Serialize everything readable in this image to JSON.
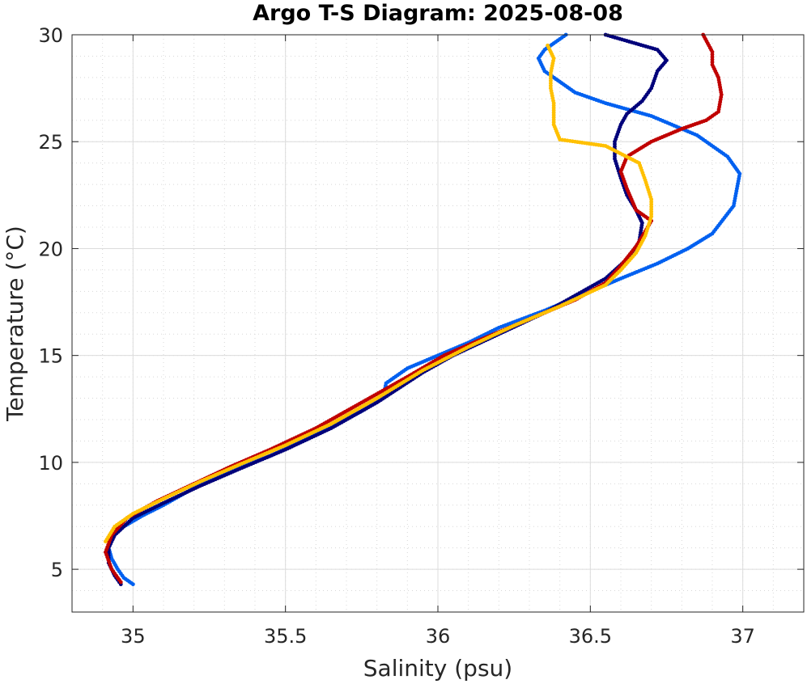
{
  "chart_data": {
    "type": "scatter",
    "title": "Argo T-S Diagram: 2025-08-08",
    "xlabel": "Salinity (psu)",
    "ylabel": "Temperature (°C)",
    "xlim": [
      34.8,
      37.2
    ],
    "ylim": [
      3,
      30
    ],
    "x_ticks": [
      35,
      35.5,
      36,
      36.5,
      37
    ],
    "x_tick_labels": [
      "35",
      "35.5",
      "36",
      "36.5",
      "37"
    ],
    "y_ticks": [
      5,
      10,
      15,
      20,
      25,
      30
    ],
    "y_tick_labels": [
      "5",
      "10",
      "15",
      "20",
      "25",
      "30"
    ],
    "grid": true,
    "minor_grid": true,
    "series": [
      {
        "color": "#0060f0",
        "points": [
          [
            35.0,
            4.3
          ],
          [
            34.97,
            4.6
          ],
          [
            34.95,
            5.0
          ],
          [
            34.93,
            5.5
          ],
          [
            34.92,
            6.0
          ],
          [
            34.93,
            6.5
          ],
          [
            34.97,
            7.0
          ],
          [
            35.03,
            7.5
          ],
          [
            35.1,
            8.0
          ],
          [
            35.2,
            8.8
          ],
          [
            35.3,
            9.5
          ],
          [
            35.45,
            10.3
          ],
          [
            35.6,
            11.3
          ],
          [
            35.75,
            12.4
          ],
          [
            35.82,
            13.0
          ],
          [
            35.83,
            13.7
          ],
          [
            35.9,
            14.4
          ],
          [
            36.0,
            15.0
          ],
          [
            36.1,
            15.6
          ],
          [
            36.2,
            16.3
          ],
          [
            36.35,
            17.1
          ],
          [
            36.5,
            18.0
          ],
          [
            36.6,
            18.6
          ],
          [
            36.72,
            19.3
          ],
          [
            36.82,
            20.0
          ],
          [
            36.9,
            20.7
          ],
          [
            36.97,
            22.0
          ],
          [
            36.99,
            23.5
          ],
          [
            36.95,
            24.3
          ],
          [
            36.85,
            25.3
          ],
          [
            36.7,
            26.2
          ],
          [
            36.55,
            26.8
          ],
          [
            36.45,
            27.3
          ],
          [
            36.4,
            27.8
          ],
          [
            36.35,
            28.3
          ],
          [
            36.33,
            28.9
          ],
          [
            36.35,
            29.3
          ],
          [
            36.38,
            29.6
          ],
          [
            36.42,
            30.0
          ]
        ]
      },
      {
        "color": "#00007a",
        "points": [
          [
            34.96,
            4.3
          ],
          [
            34.94,
            4.7
          ],
          [
            34.92,
            5.3
          ],
          [
            34.92,
            6.0
          ],
          [
            34.94,
            6.6
          ],
          [
            35.0,
            7.4
          ],
          [
            35.1,
            8.1
          ],
          [
            35.22,
            8.9
          ],
          [
            35.35,
            9.7
          ],
          [
            35.5,
            10.6
          ],
          [
            35.65,
            11.6
          ],
          [
            35.8,
            12.8
          ],
          [
            35.95,
            14.2
          ],
          [
            36.05,
            15.0
          ],
          [
            36.2,
            16.0
          ],
          [
            36.35,
            17.0
          ],
          [
            36.45,
            17.8
          ],
          [
            36.55,
            18.6
          ],
          [
            36.62,
            19.5
          ],
          [
            36.66,
            20.3
          ],
          [
            36.67,
            21.2
          ],
          [
            36.65,
            21.8
          ],
          [
            36.62,
            22.5
          ],
          [
            36.6,
            23.3
          ],
          [
            36.58,
            24.2
          ],
          [
            36.58,
            25.0
          ],
          [
            36.6,
            25.8
          ],
          [
            36.62,
            26.3
          ],
          [
            36.67,
            26.9
          ],
          [
            36.7,
            27.5
          ],
          [
            36.72,
            28.3
          ],
          [
            36.75,
            28.8
          ],
          [
            36.72,
            29.3
          ],
          [
            36.55,
            30.0
          ]
        ]
      },
      {
        "color": "#c00000",
        "points": [
          [
            34.96,
            4.4
          ],
          [
            34.93,
            5.0
          ],
          [
            34.91,
            5.8
          ],
          [
            34.93,
            6.6
          ],
          [
            34.98,
            7.4
          ],
          [
            35.08,
            8.2
          ],
          [
            35.2,
            9.0
          ],
          [
            35.32,
            9.8
          ],
          [
            35.45,
            10.6
          ],
          [
            35.6,
            11.6
          ],
          [
            35.75,
            12.8
          ],
          [
            35.9,
            14.0
          ],
          [
            36.02,
            15.0
          ],
          [
            36.15,
            15.8
          ],
          [
            36.3,
            16.7
          ],
          [
            36.45,
            17.6
          ],
          [
            36.55,
            18.4
          ],
          [
            36.6,
            19.2
          ],
          [
            36.65,
            20.1
          ],
          [
            36.68,
            20.8
          ],
          [
            36.7,
            21.3
          ],
          [
            36.65,
            21.8
          ],
          [
            36.62,
            22.8
          ],
          [
            36.6,
            23.6
          ],
          [
            36.62,
            24.3
          ],
          [
            36.7,
            25.0
          ],
          [
            36.8,
            25.6
          ],
          [
            36.88,
            26.0
          ],
          [
            36.92,
            26.4
          ],
          [
            36.93,
            27.2
          ],
          [
            36.92,
            28.0
          ],
          [
            36.9,
            28.6
          ],
          [
            36.9,
            29.2
          ],
          [
            36.87,
            30.0
          ]
        ]
      },
      {
        "color": "#ffc000",
        "points": [
          [
            34.91,
            6.3
          ],
          [
            34.94,
            7.0
          ],
          [
            35.0,
            7.6
          ],
          [
            35.1,
            8.3
          ],
          [
            35.22,
            9.1
          ],
          [
            35.35,
            9.9
          ],
          [
            35.5,
            10.8
          ],
          [
            35.65,
            11.8
          ],
          [
            35.8,
            13.0
          ],
          [
            35.95,
            14.3
          ],
          [
            36.1,
            15.4
          ],
          [
            36.25,
            16.4
          ],
          [
            36.4,
            17.3
          ],
          [
            36.55,
            18.3
          ],
          [
            36.6,
            19.0
          ],
          [
            36.65,
            19.8
          ],
          [
            36.68,
            20.6
          ],
          [
            36.7,
            21.5
          ],
          [
            36.7,
            22.3
          ],
          [
            36.68,
            23.2
          ],
          [
            36.66,
            24.0
          ],
          [
            36.55,
            24.8
          ],
          [
            36.45,
            25.0
          ],
          [
            36.4,
            25.1
          ],
          [
            36.38,
            25.8
          ],
          [
            36.38,
            26.8
          ],
          [
            36.37,
            27.5
          ],
          [
            36.37,
            28.2
          ],
          [
            36.38,
            28.9
          ],
          [
            36.36,
            29.5
          ]
        ]
      }
    ]
  }
}
